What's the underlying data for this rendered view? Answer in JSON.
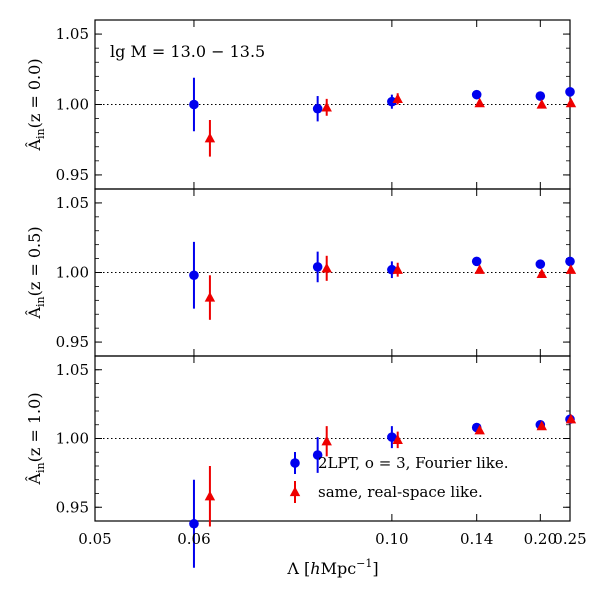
{
  "chart_data": {
    "type": "scatter",
    "xlabel": "Λ [hMpc⁻¹]",
    "x_scale": "reciprocal",
    "xlim": [
      0.05,
      0.25
    ],
    "x_ticks": [
      0.05,
      0.06,
      0.1,
      0.14,
      0.2,
      0.25
    ],
    "x_tick_labels": [
      "0.05",
      "0.06",
      "0.10",
      "0.14",
      "0.20",
      "0.25"
    ],
    "y_ticks": [
      0.95,
      1.0,
      1.05
    ],
    "y_tick_labels": [
      "0.95",
      "1.00",
      "1.05"
    ],
    "ylim": [
      0.94,
      1.06
    ],
    "reference_line": 1.0,
    "annotation": "lg M = 13.0 − 13.5",
    "legend": {
      "placement": "lower-right",
      "entries": [
        {
          "label": "2LPT, o = 3, Fourier like.",
          "color": "#0000ee",
          "marker": "circle"
        },
        {
          "label": "same, real-space like.",
          "color": "#ee0000",
          "marker": "triangle"
        }
      ]
    },
    "panels": [
      {
        "ylabel": "Â_in(z = 0.0)",
        "series": [
          {
            "color": "#0000ee",
            "marker": "circle",
            "x": [
              0.06,
              0.08,
              0.1,
              0.14,
              0.2,
              0.25
            ],
            "y": [
              1.0,
              0.997,
              1.002,
              1.007,
              1.006,
              1.009
            ],
            "err": [
              0.019,
              0.009,
              0.005,
              0.0,
              0.0,
              0.0
            ]
          },
          {
            "color": "#ee0000",
            "marker": "triangle",
            "x": [
              0.062,
              0.082,
              0.102,
              0.142,
              0.202,
              0.252
            ],
            "y": [
              0.976,
              0.998,
              1.004,
              1.001,
              1.0,
              1.001
            ],
            "err": [
              0.013,
              0.006,
              0.004,
              0.0,
              0.0,
              0.0
            ]
          }
        ]
      },
      {
        "ylabel": "Â_in(z = 0.5)",
        "series": [
          {
            "color": "#0000ee",
            "marker": "circle",
            "x": [
              0.06,
              0.08,
              0.1,
              0.14,
              0.2,
              0.25
            ],
            "y": [
              0.998,
              1.004,
              1.002,
              1.008,
              1.006,
              1.008
            ],
            "err": [
              0.024,
              0.011,
              0.006,
              0.0,
              0.0,
              0.0
            ]
          },
          {
            "color": "#ee0000",
            "marker": "triangle",
            "x": [
              0.062,
              0.082,
              0.102,
              0.142,
              0.202,
              0.252
            ],
            "y": [
              0.982,
              1.003,
              1.002,
              1.002,
              0.999,
              1.002
            ],
            "err": [
              0.016,
              0.009,
              0.005,
              0.0,
              0.0,
              0.0
            ]
          }
        ]
      },
      {
        "ylabel": "Â_in(z = 1.0)",
        "series": [
          {
            "color": "#0000ee",
            "marker": "circle",
            "x": [
              0.06,
              0.08,
              0.1,
              0.14,
              0.2,
              0.25
            ],
            "y": [
              0.938,
              0.988,
              1.001,
              1.008,
              1.01,
              1.014
            ],
            "err": [
              0.032,
              0.013,
              0.008,
              0.0,
              0.0,
              0.0
            ]
          },
          {
            "color": "#ee0000",
            "marker": "triangle",
            "x": [
              0.062,
              0.082,
              0.102,
              0.142,
              0.202,
              0.252
            ],
            "y": [
              0.958,
              0.998,
              0.999,
              1.006,
              1.009,
              1.014
            ],
            "err": [
              0.022,
              0.011,
              0.006,
              0.0,
              0.0,
              0.0
            ]
          }
        ]
      }
    ]
  }
}
